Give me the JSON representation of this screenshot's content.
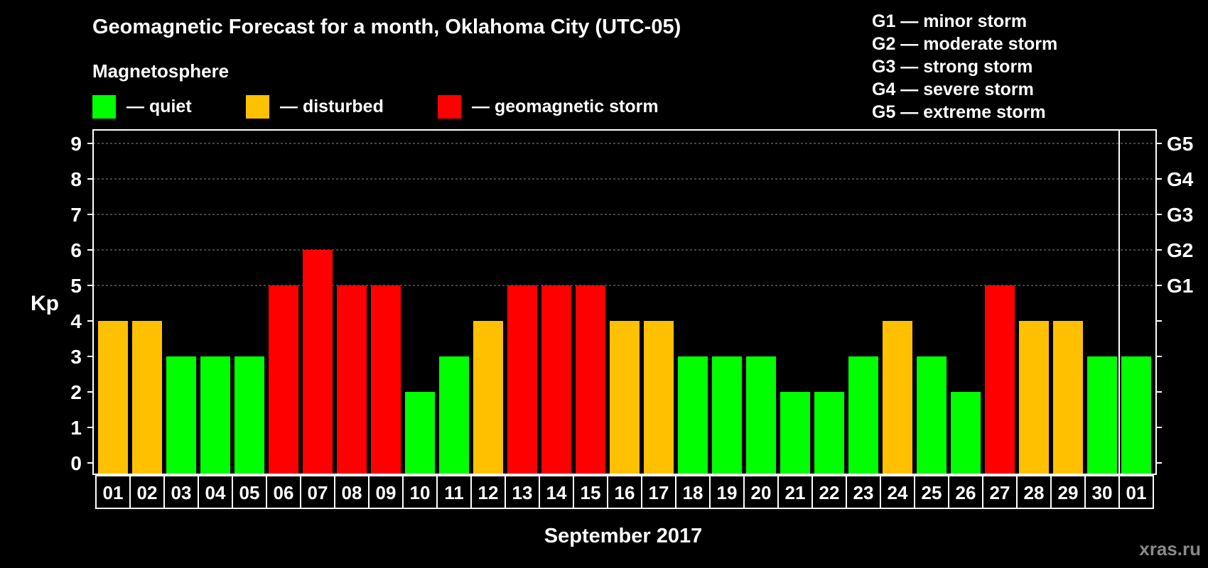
{
  "chart_data": {
    "type": "bar",
    "title": "Geomagnetic Forecast for a month, Oklahoma City (UTC-05)",
    "legend_heading": "Magnetosphere",
    "legend": [
      {
        "label": "— quiet",
        "color": "#00ff00"
      },
      {
        "label": "— disturbed",
        "color": "#ffc000"
      },
      {
        "label": "— geomagnetic storm",
        "color": "#ff0000"
      }
    ],
    "storm_scale": [
      "G1 — minor storm",
      "G2 — moderate storm",
      "G3 — strong storm",
      "G4 — severe storm",
      "G5 — extreme storm"
    ],
    "ylabel": "Kp",
    "xlabel": "September 2017",
    "ylim": [
      0,
      9
    ],
    "yticks": [
      "0",
      "1",
      "2",
      "3",
      "4",
      "5",
      "6",
      "7",
      "8",
      "9"
    ],
    "right_ticks": [
      {
        "value": 5,
        "label": "G1"
      },
      {
        "value": 6,
        "label": "G2"
      },
      {
        "value": 7,
        "label": "G3"
      },
      {
        "value": 8,
        "label": "G4"
      },
      {
        "value": 9,
        "label": "G5"
      }
    ],
    "categories": [
      "01",
      "02",
      "03",
      "04",
      "05",
      "06",
      "07",
      "08",
      "09",
      "10",
      "11",
      "12",
      "13",
      "14",
      "15",
      "16",
      "17",
      "18",
      "19",
      "20",
      "21",
      "22",
      "23",
      "24",
      "25",
      "26",
      "27",
      "28",
      "29",
      "30",
      "01"
    ],
    "values": [
      4,
      4,
      3,
      3,
      3,
      5,
      6,
      5,
      5,
      2,
      3,
      4,
      5,
      5,
      5,
      4,
      4,
      3,
      3,
      3,
      2,
      2,
      3,
      4,
      3,
      2,
      5,
      4,
      4,
      3,
      3
    ],
    "colors": {
      "quiet": "#00ff00",
      "disturbed": "#ffc000",
      "storm": "#ff0000"
    },
    "month_divider_after_index": 29,
    "grid_lines_at": [
      5,
      6,
      7,
      8,
      9
    ]
  },
  "watermark": "xras.ru"
}
